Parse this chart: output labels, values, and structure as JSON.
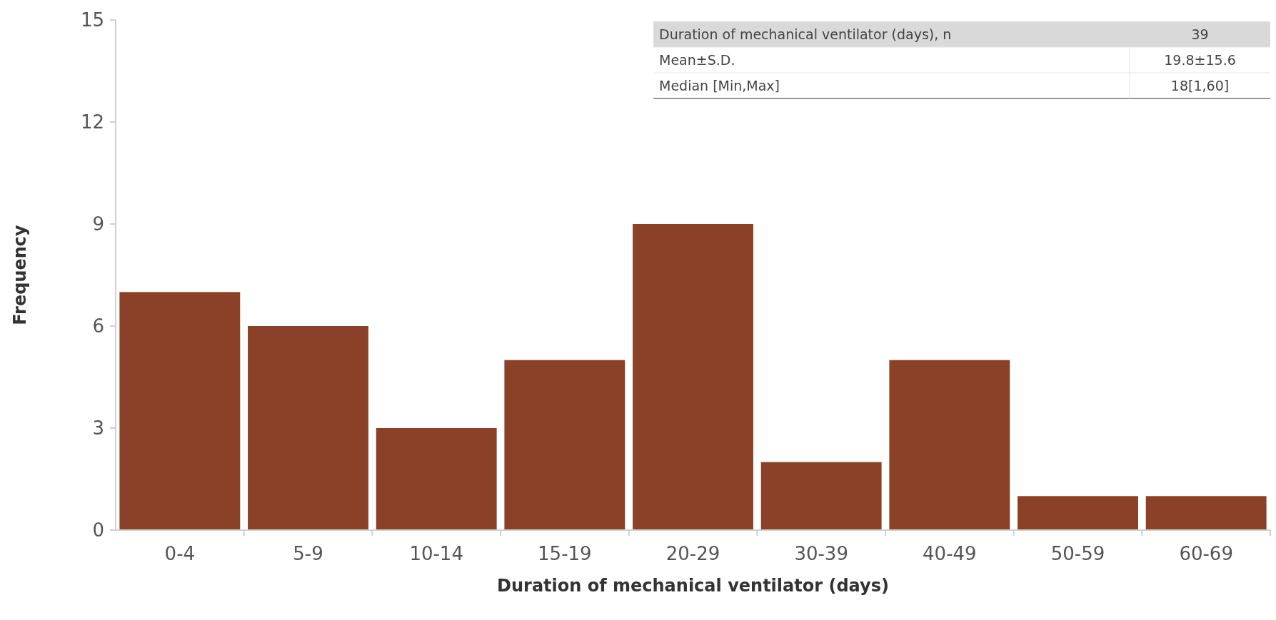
{
  "chart_data": {
    "type": "bar",
    "xlabel": "Duration of mechanical ventilator (days)",
    "ylabel": "Frequency",
    "categories": [
      "0-4",
      "5-9",
      "10-14",
      "15-19",
      "20-29",
      "30-39",
      "40-49",
      "50-59",
      "60-69"
    ],
    "values": [
      7,
      6,
      3,
      5,
      9,
      2,
      5,
      1,
      1
    ],
    "color": "#8b4128",
    "ylim": [
      0,
      15
    ],
    "yticks": [
      0,
      3,
      6,
      9,
      12,
      15
    ],
    "grid": false,
    "annotations": [
      "Duration of mechanical ventilator (days), n",
      "39",
      "Mean±S.D.",
      "19.8±15.6",
      "Median [Min,Max]",
      "18[1,60]"
    ]
  }
}
